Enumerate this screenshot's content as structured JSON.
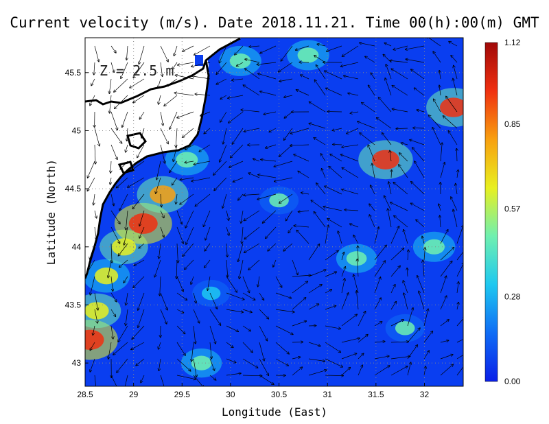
{
  "chart_data": {
    "type": "heatmap",
    "title": "Current velocity (m/s). Date 2018.11.21. Time 00(h):00(m) GMT",
    "xlabel": "Longitude (East)",
    "ylabel": "Latitude (North)",
    "xlim": [
      28.5,
      32.4
    ],
    "ylim": [
      42.8,
      45.8
    ],
    "x_ticks": [
      {
        "value": 28.5,
        "label": "28.5"
      },
      {
        "value": 29,
        "label": "29"
      },
      {
        "value": 29.5,
        "label": "29.5"
      },
      {
        "value": 30,
        "label": "30"
      },
      {
        "value": 30.5,
        "label": "30.5"
      },
      {
        "value": 31,
        "label": "31"
      },
      {
        "value": 31.5,
        "label": "31.5"
      },
      {
        "value": 32,
        "label": "32"
      }
    ],
    "y_ticks": [
      {
        "value": 43,
        "label": "43"
      },
      {
        "value": 43.5,
        "label": "43.5"
      },
      {
        "value": 44,
        "label": "44"
      },
      {
        "value": 44.5,
        "label": "44.5"
      },
      {
        "value": 45,
        "label": "45"
      },
      {
        "value": 45.5,
        "label": "45.5"
      }
    ],
    "grid": true,
    "annotation": "Z = 2.5 m",
    "colorbar": {
      "min": 0.0,
      "max": 1.12,
      "ticks": [
        {
          "value": 0.0,
          "label": "0.00"
        },
        {
          "value": 0.28,
          "label": "0.28"
        },
        {
          "value": 0.57,
          "label": "0.57"
        },
        {
          "value": 0.85,
          "label": "0.85"
        },
        {
          "value": 1.12,
          "label": "1.12"
        }
      ],
      "colors": [
        "#0a1fe8",
        "#0f6cf5",
        "#1ec8f0",
        "#6ff0b0",
        "#e8f020",
        "#f8a010",
        "#f03010",
        "#a00808"
      ]
    },
    "land_color": "#ffffff",
    "coast_color": "#000000",
    "field_base_color": "#0a3ef0",
    "speed_hotspots": [
      {
        "lon": 28.55,
        "lat": 43.2,
        "value": 0.95
      },
      {
        "lon": 28.62,
        "lat": 43.45,
        "value": 0.7
      },
      {
        "lon": 28.72,
        "lat": 43.75,
        "value": 0.65
      },
      {
        "lon": 28.9,
        "lat": 44.0,
        "value": 0.7
      },
      {
        "lon": 29.1,
        "lat": 44.2,
        "value": 1.0
      },
      {
        "lon": 29.3,
        "lat": 44.45,
        "value": 0.8
      },
      {
        "lon": 29.55,
        "lat": 44.75,
        "value": 0.55
      },
      {
        "lon": 31.6,
        "lat": 44.75,
        "value": 0.9
      },
      {
        "lon": 32.3,
        "lat": 45.2,
        "value": 0.9
      },
      {
        "lon": 30.1,
        "lat": 45.6,
        "value": 0.5
      },
      {
        "lon": 30.8,
        "lat": 45.65,
        "value": 0.5
      },
      {
        "lon": 29.7,
        "lat": 43.0,
        "value": 0.45
      },
      {
        "lon": 30.5,
        "lat": 44.4,
        "value": 0.4
      },
      {
        "lon": 31.3,
        "lat": 43.9,
        "value": 0.45
      },
      {
        "lon": 32.1,
        "lat": 44.0,
        "value": 0.5
      },
      {
        "lon": 29.8,
        "lat": 43.6,
        "value": 0.35
      },
      {
        "lon": 31.8,
        "lat": 43.3,
        "value": 0.4
      }
    ]
  }
}
